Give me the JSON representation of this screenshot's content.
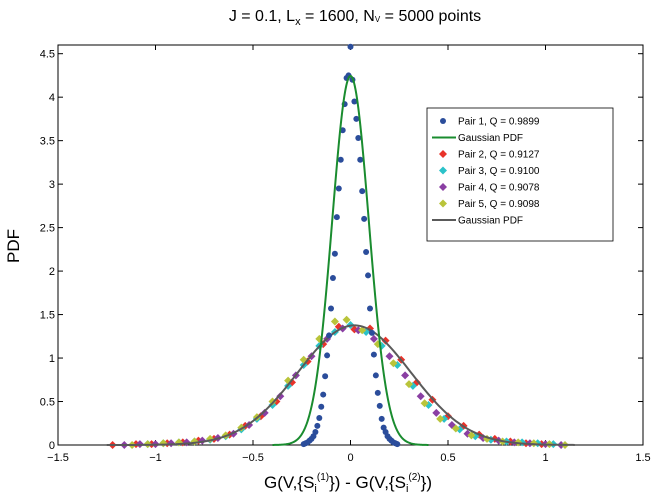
{
  "chart_data": {
    "type": "scatter",
    "title": {
      "prefix": "J = 0.1, L",
      "sub": "x",
      "middle": " = 1600, N",
      "sub2": "V",
      "suffix": " = 5000 points"
    },
    "xlabel": {
      "p1": "G(V,{S",
      "sub1": "i",
      "sup1": "(1)",
      "p2": "}) - G(V,{S",
      "sub2": "i",
      "sup2": "(2)",
      "p3": "})"
    },
    "ylabel": "PDF",
    "xlim": [
      -1.5,
      1.5
    ],
    "ylim": [
      0,
      4.6
    ],
    "xticks": [
      -1.5,
      -1,
      -0.5,
      0,
      0.5,
      1,
      1.5
    ],
    "xtick_labels": [
      "−1.5",
      "−1",
      "−0.5",
      "0",
      "0.5",
      "1",
      "1.5"
    ],
    "yticks": [
      0,
      0.5,
      1,
      1.5,
      2,
      2.5,
      3,
      3.5,
      4,
      4.5
    ],
    "ytick_labels": [
      "0",
      "0.5",
      "1",
      "1.5",
      "2",
      "2.5",
      "3",
      "3.5",
      "4",
      "4.5"
    ],
    "grid": false,
    "legend_position": "right",
    "series": [
      {
        "name": "Pair 1, Q = 0.9899",
        "kind": "points",
        "marker": "circle",
        "color": "#2b4d9b",
        "x": [
          -0.24,
          -0.23,
          -0.22,
          -0.21,
          -0.2,
          -0.19,
          -0.18,
          -0.17,
          -0.16,
          -0.15,
          -0.14,
          -0.13,
          -0.12,
          -0.11,
          -0.1,
          -0.09,
          -0.08,
          -0.07,
          -0.06,
          -0.05,
          -0.04,
          -0.03,
          -0.02,
          -0.01,
          0,
          0.01,
          0.02,
          0.03,
          0.04,
          0.05,
          0.06,
          0.07,
          0.08,
          0.09,
          0.1,
          0.11,
          0.12,
          0.13,
          0.14,
          0.15,
          0.16,
          0.17,
          0.18,
          0.19,
          0.2,
          0.21,
          0.22,
          0.23,
          0.24
        ],
        "y": [
          0.01,
          0.02,
          0.03,
          0.05,
          0.07,
          0.1,
          0.15,
          0.22,
          0.31,
          0.44,
          0.58,
          0.79,
          1.03,
          1.26,
          1.57,
          1.92,
          2.2,
          2.62,
          2.95,
          3.28,
          3.62,
          3.92,
          4.22,
          4.25,
          4.58,
          4.2,
          3.95,
          3.75,
          3.53,
          3.28,
          2.92,
          2.6,
          2.22,
          1.95,
          1.57,
          1.29,
          1.04,
          0.8,
          0.6,
          0.45,
          0.3,
          0.2,
          0.15,
          0.1,
          0.07,
          0.05,
          0.03,
          0.02,
          0.01
        ]
      },
      {
        "name": "Gaussian PDF",
        "kind": "gaussian",
        "color": "#1a8c2f",
        "mu": 0,
        "sigma": 0.094,
        "xrange": [
          -0.4,
          0.4
        ]
      },
      {
        "name": "Pair 2, Q = 0.9127",
        "kind": "points",
        "marker": "diamond",
        "color": "#e8332a",
        "x": [
          -1.22,
          -1.1,
          -1.02,
          -0.94,
          -0.86,
          -0.78,
          -0.7,
          -0.62,
          -0.54,
          -0.46,
          -0.38,
          -0.3,
          -0.22,
          -0.14,
          -0.06,
          0.02,
          0.1,
          0.18,
          0.26,
          0.34,
          0.42,
          0.5,
          0.58,
          0.66,
          0.74,
          0.82,
          0.9,
          0.98
        ],
        "y": [
          0.0,
          0.01,
          0.01,
          0.02,
          0.03,
          0.05,
          0.07,
          0.12,
          0.22,
          0.33,
          0.5,
          0.72,
          0.96,
          1.16,
          1.36,
          1.33,
          1.34,
          1.2,
          0.98,
          0.72,
          0.52,
          0.33,
          0.22,
          0.12,
          0.07,
          0.04,
          0.02,
          0.01
        ]
      },
      {
        "name": "Pair 3, Q = 0.9100",
        "kind": "points",
        "marker": "diamond",
        "color": "#2bc2c9",
        "x": [
          -1.04,
          -0.96,
          -0.88,
          -0.8,
          -0.72,
          -0.64,
          -0.56,
          -0.48,
          -0.4,
          -0.32,
          -0.24,
          -0.16,
          -0.08,
          0,
          0.08,
          0.16,
          0.24,
          0.32,
          0.4,
          0.48,
          0.56,
          0.64,
          0.72,
          0.8,
          0.88,
          0.96,
          1.04
        ],
        "y": [
          0.01,
          0.02,
          0.03,
          0.04,
          0.06,
          0.1,
          0.18,
          0.3,
          0.46,
          0.68,
          0.92,
          1.14,
          1.3,
          1.38,
          1.3,
          1.14,
          0.92,
          0.68,
          0.46,
          0.3,
          0.18,
          0.1,
          0.06,
          0.04,
          0.03,
          0.02,
          0.01
        ]
      },
      {
        "name": "Pair 4, Q = 0.9078",
        "kind": "points",
        "marker": "diamond",
        "color": "#8a3fa3",
        "x": [
          -1.16,
          -1.08,
          -1.0,
          -0.92,
          -0.84,
          -0.76,
          -0.68,
          -0.6,
          -0.52,
          -0.44,
          -0.36,
          -0.28,
          -0.2,
          -0.12,
          -0.04,
          0.04,
          0.12,
          0.2,
          0.28,
          0.36,
          0.44,
          0.52,
          0.6,
          0.68,
          0.76,
          0.84,
          0.92,
          1.0,
          1.08
        ],
        "y": [
          0.0,
          0.01,
          0.01,
          0.02,
          0.03,
          0.05,
          0.08,
          0.13,
          0.23,
          0.37,
          0.56,
          0.8,
          1.02,
          1.22,
          1.34,
          1.32,
          1.22,
          1.02,
          0.8,
          0.56,
          0.37,
          0.23,
          0.13,
          0.08,
          0.05,
          0.03,
          0.02,
          0.01,
          0.0
        ]
      },
      {
        "name": "Pair 5, Q = 0.9098",
        "kind": "points",
        "marker": "diamond",
        "color": "#b9c43a",
        "x": [
          -1.12,
          -1.04,
          -0.96,
          -0.88,
          -0.8,
          -0.72,
          -0.64,
          -0.56,
          -0.48,
          -0.4,
          -0.32,
          -0.24,
          -0.16,
          -0.08,
          -0.02,
          0.06,
          0.14,
          0.22,
          0.3,
          0.38,
          0.46,
          0.54,
          0.62,
          0.7,
          0.78,
          0.86,
          0.94,
          1.02,
          1.1
        ],
        "y": [
          0.0,
          0.01,
          0.02,
          0.03,
          0.04,
          0.07,
          0.11,
          0.2,
          0.32,
          0.5,
          0.74,
          0.98,
          1.22,
          1.42,
          1.44,
          1.32,
          1.16,
          0.94,
          0.7,
          0.48,
          0.3,
          0.19,
          0.11,
          0.07,
          0.04,
          0.03,
          0.02,
          0.01,
          0.0
        ]
      },
      {
        "name": "Gaussian PDF",
        "kind": "gaussian",
        "color": "#5a5a5a",
        "mu": 0.02,
        "sigma": 0.29,
        "xrange": [
          -1.25,
          1.15
        ]
      }
    ]
  }
}
